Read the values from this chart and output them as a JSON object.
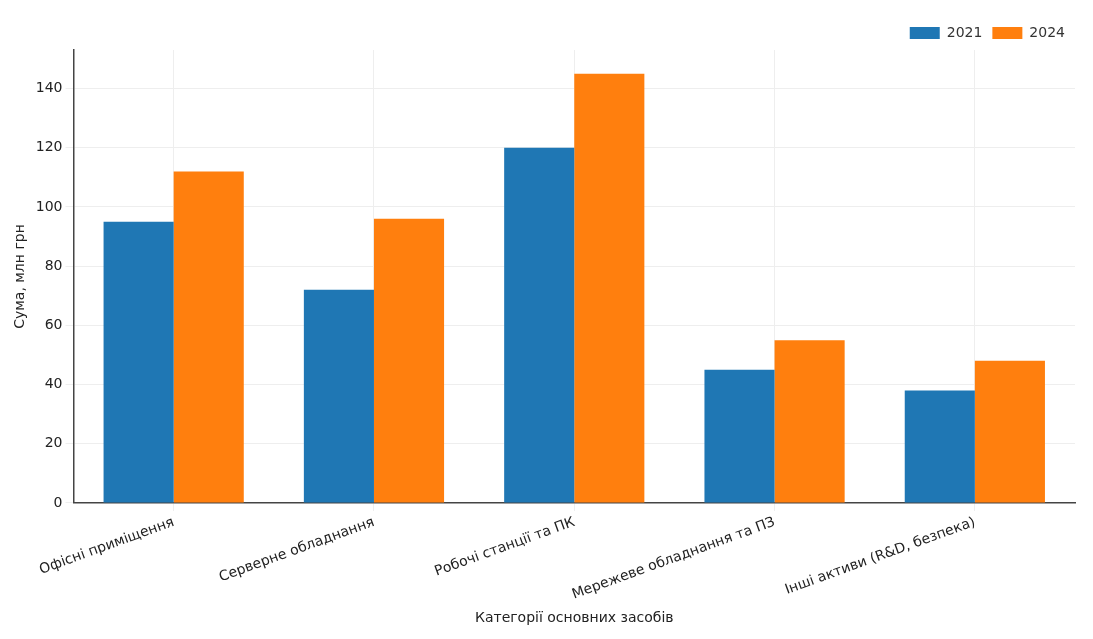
{
  "chart_data": {
    "type": "bar",
    "xlabel": "Категорії основних засобів",
    "ylabel": "Сума, млн грн",
    "categories": [
      "Офісні приміщення",
      "Серверне обладнання",
      "Робочі станції та ПК",
      "Мережеве обладнання та ПЗ",
      "Інші активи (R&D, безпека)"
    ],
    "series": [
      {
        "name": "2021",
        "color": "#1f77b4",
        "values": [
          95,
          72,
          120,
          45,
          38
        ]
      },
      {
        "name": "2024",
        "color": "#ff7f0e",
        "values": [
          112,
          96,
          145,
          55,
          48
        ]
      }
    ],
    "ylim": [
      0,
      153
    ],
    "yticks": [
      0,
      20,
      40,
      60,
      80,
      100,
      120,
      140
    ],
    "grid": true,
    "legend": "top right"
  }
}
